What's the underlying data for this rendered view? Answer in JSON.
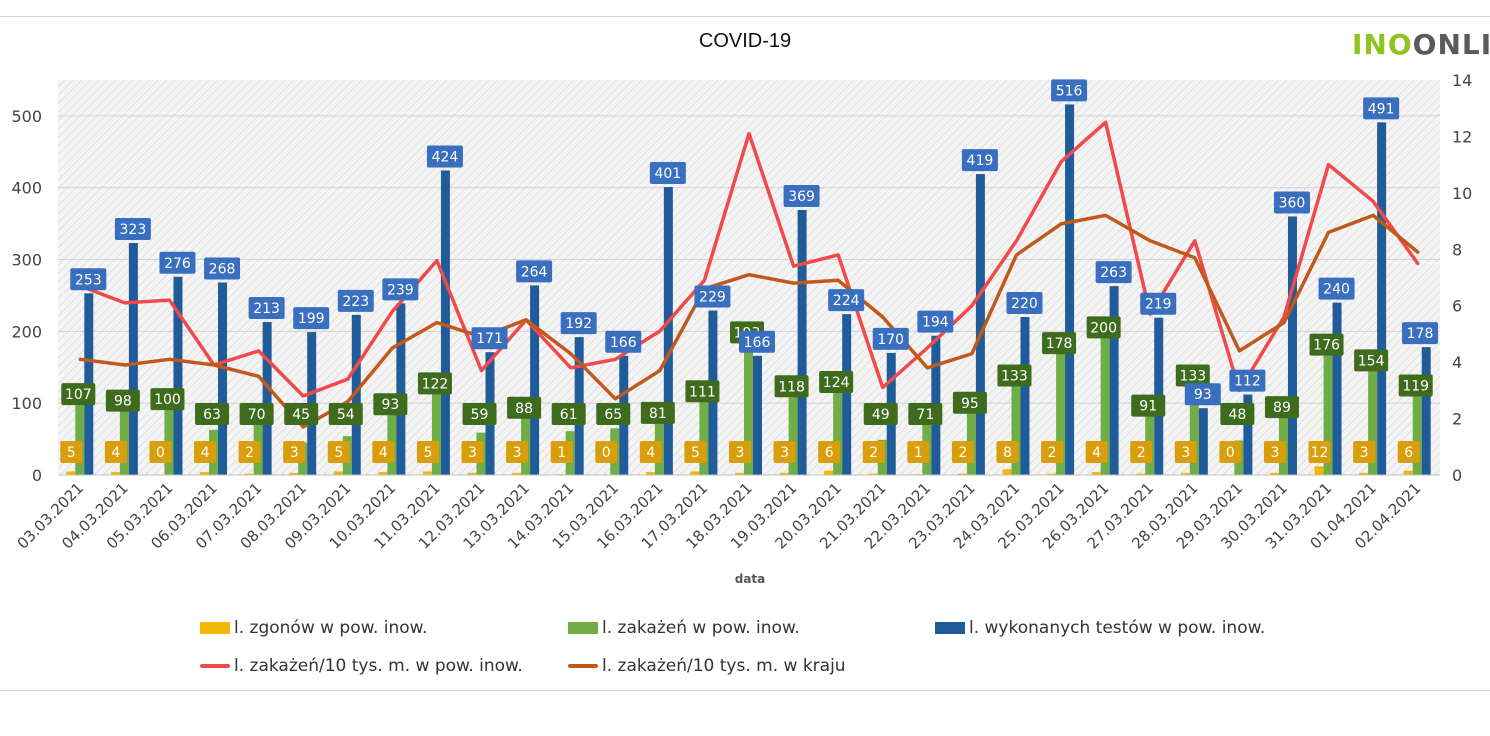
{
  "colors": {
    "deaths": "#f2b705",
    "infections": "#70ad47",
    "tests": "#1f5c99",
    "rate_local": "#f04a4a",
    "rate_country": "#c0591b",
    "label_tests_bg": "#3a6fbf",
    "label_inf_bg": "#3f6b1e",
    "label_deaths_bg": "#d99e0b"
  },
  "logo": {
    "part1": "INO",
    "part2": "ONLIN"
  },
  "chart_data": {
    "type": "bar",
    "title": "COVID-19",
    "xlabel": "data",
    "ylabel": "",
    "ylim": [
      0,
      550
    ],
    "y2lim": [
      0,
      14
    ],
    "yticks": [
      "0",
      "100",
      "200",
      "300",
      "400",
      "500"
    ],
    "y2ticks": [
      "0",
      "2",
      "4",
      "6",
      "8",
      "10",
      "12",
      "14"
    ],
    "grid": true,
    "legend_position": "bottom",
    "categories": [
      "03.03.2021",
      "04.03.2021",
      "05.03.2021",
      "06.03.2021",
      "07.03.2021",
      "08.03.2021",
      "09.03.2021",
      "10.03.2021",
      "11.03.2021",
      "12.03.2021",
      "13.03.2021",
      "14.03.2021",
      "15.03.2021",
      "16.03.2021",
      "17.03.2021",
      "18.03.2021",
      "19.03.2021",
      "20.03.2021",
      "21.03.2021",
      "22.03.2021",
      "23.03.2021",
      "24.03.2021",
      "25.03.2021",
      "26.03.2021",
      "27.03.2021",
      "28.03.2021",
      "29.03.2021",
      "30.03.2021",
      "31.03.2021",
      "01.04.2021",
      "02.04.2021"
    ],
    "series": [
      {
        "name": "l. zgonów w pow. inow.",
        "kind": "bar",
        "axis": "left",
        "values": [
          5,
          4,
          0,
          4,
          2,
          3,
          5,
          4,
          5,
          3,
          3,
          1,
          0,
          4,
          5,
          3,
          3,
          6,
          2,
          1,
          2,
          8,
          2,
          4,
          2,
          3,
          0,
          3,
          12,
          3,
          6
        ]
      },
      {
        "name": "l. zakażeń w pow. inow.",
        "kind": "bar",
        "axis": "left",
        "values": [
          107,
          98,
          100,
          63,
          70,
          45,
          54,
          93,
          122,
          59,
          88,
          61,
          65,
          81,
          111,
          193,
          118,
          124,
          49,
          71,
          95,
          133,
          178,
          200,
          91,
          133,
          48,
          89,
          176,
          154,
          119
        ]
      },
      {
        "name": "l. wykonanych testów w pow. inow.",
        "kind": "bar",
        "axis": "left",
        "values": [
          253,
          323,
          276,
          268,
          213,
          199,
          223,
          239,
          424,
          171,
          264,
          192,
          166,
          401,
          229,
          166,
          369,
          224,
          170,
          194,
          419,
          220,
          516,
          263,
          219,
          93,
          112,
          360,
          240,
          491,
          178
        ]
      },
      {
        "name": "l. zakażeń/10 tys. m. w pow. inow.",
        "kind": "line",
        "axis": "right",
        "values": [
          6.7,
          6.1,
          6.2,
          3.9,
          4.4,
          2.8,
          3.4,
          5.8,
          7.6,
          3.7,
          5.5,
          3.8,
          4.1,
          5.1,
          6.9,
          12.1,
          7.4,
          7.8,
          3.1,
          4.5,
          6.0,
          8.3,
          11.1,
          12.5,
          5.7,
          8.3,
          3.0,
          5.6,
          11.0,
          9.7,
          7.5
        ]
      },
      {
        "name": "l. zakażeń/10 tys. m. w kraju",
        "kind": "line",
        "axis": "right",
        "values": [
          4.1,
          3.9,
          4.1,
          3.9,
          3.5,
          1.7,
          2.6,
          4.5,
          5.4,
          4.9,
          5.5,
          4.3,
          2.7,
          3.7,
          6.6,
          7.1,
          6.8,
          6.9,
          5.6,
          3.8,
          4.3,
          7.8,
          8.9,
          9.2,
          8.3,
          7.7,
          4.4,
          5.4,
          8.6,
          9.2,
          7.9
        ]
      }
    ]
  }
}
